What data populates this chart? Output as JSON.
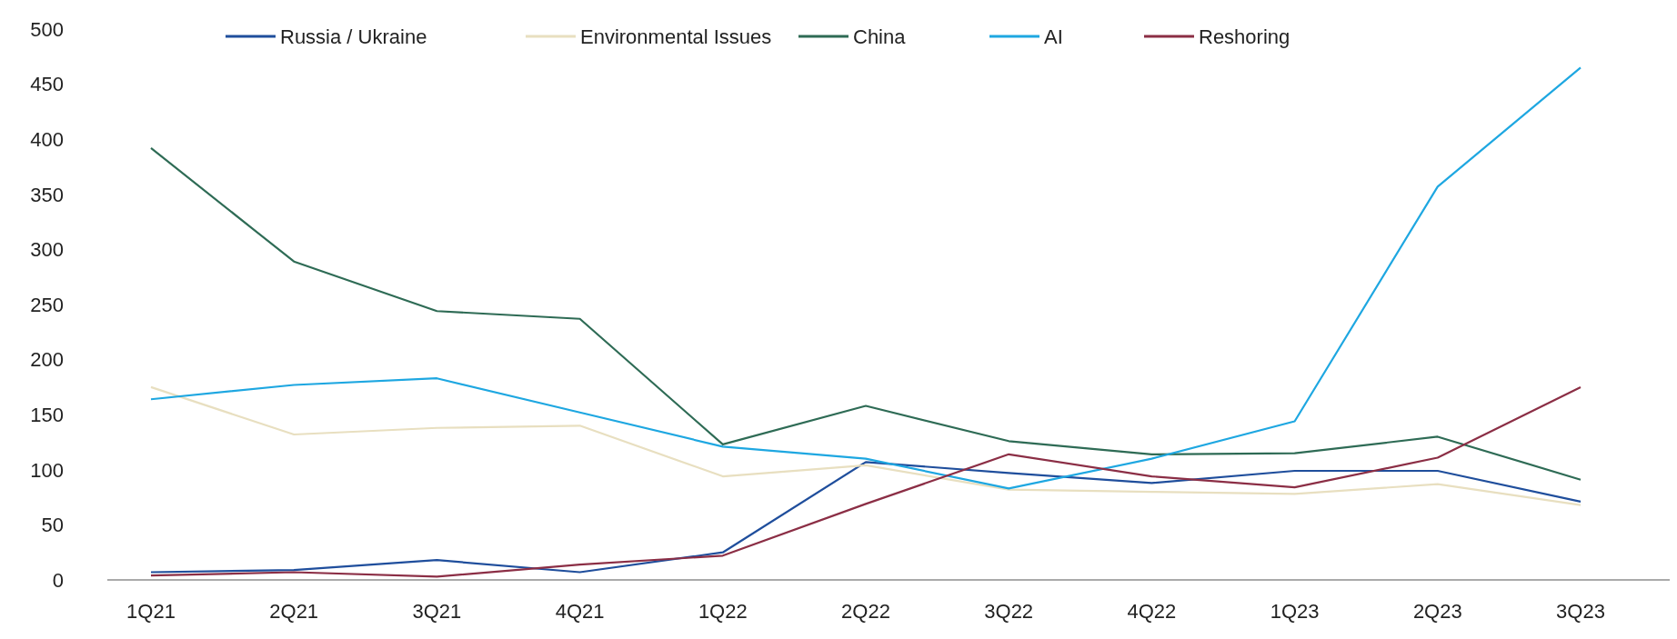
{
  "chart_data": {
    "type": "line",
    "categories": [
      "1Q21",
      "2Q21",
      "3Q21",
      "4Q21",
      "1Q22",
      "2Q22",
      "3Q22",
      "4Q22",
      "1Q23",
      "2Q23",
      "3Q23"
    ],
    "series": [
      {
        "name": "Russia / Ukraine",
        "color": "#1f4e9c",
        "values": [
          7,
          9,
          18,
          7,
          25,
          107,
          97,
          88,
          99,
          99,
          71
        ]
      },
      {
        "name": "Environmental Issues",
        "color": "#e8dfc0",
        "values": [
          175,
          132,
          138,
          140,
          94,
          104,
          82,
          80,
          78,
          87,
          68
        ]
      },
      {
        "name": "China",
        "color": "#2e6b55",
        "values": [
          392,
          289,
          244,
          237,
          123,
          158,
          126,
          114,
          115,
          130,
          91
        ]
      },
      {
        "name": "AI",
        "color": "#1ea7e1",
        "values": [
          164,
          177,
          183,
          152,
          121,
          110,
          83,
          110,
          144,
          357,
          465
        ]
      },
      {
        "name": "Reshoring",
        "color": "#8b2e45",
        "values": [
          4,
          7,
          3,
          14,
          22,
          69,
          114,
          94,
          84,
          111,
          175
        ]
      }
    ],
    "ylim": [
      0,
      500
    ],
    "yticks": [
      0,
      50,
      100,
      150,
      200,
      250,
      300,
      350,
      400,
      450,
      500
    ],
    "grid": false,
    "legend": "top",
    "marker": "none",
    "line_style": "solid"
  }
}
